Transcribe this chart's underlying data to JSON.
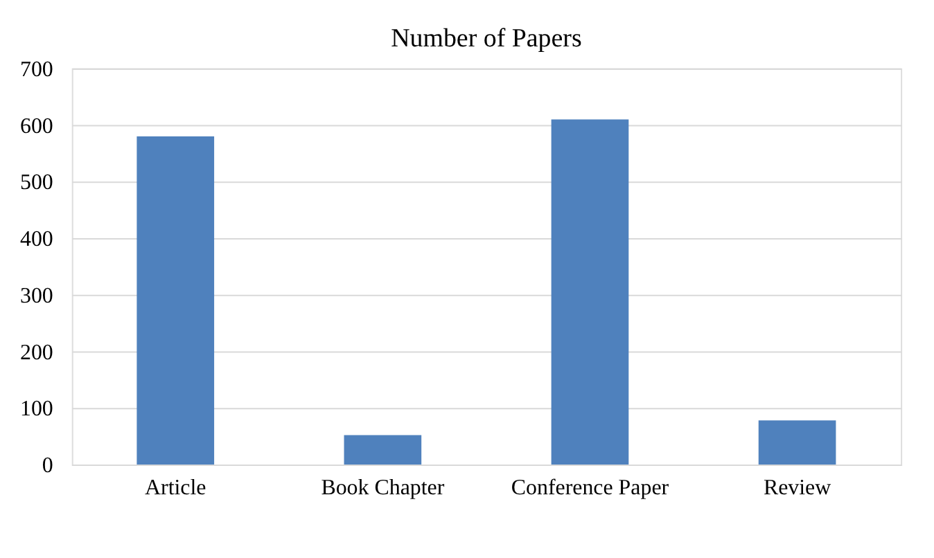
{
  "chart_data": {
    "type": "bar",
    "title": "Number of Papers",
    "categories": [
      "Article",
      "Book Chapter",
      "Conference Paper",
      "Review"
    ],
    "values": [
      580,
      52,
      610,
      78
    ],
    "color": "#4f81bd",
    "ylim": [
      0,
      700
    ],
    "yticks": [
      0,
      100,
      200,
      300,
      400,
      500,
      600,
      700
    ],
    "grid": "y"
  }
}
